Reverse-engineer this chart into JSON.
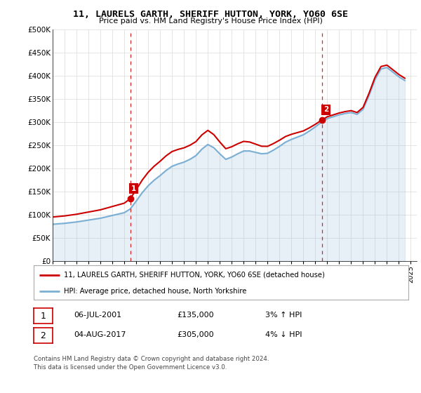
{
  "title": "11, LAURELS GARTH, SHERIFF HUTTON, YORK, YO60 6SE",
  "subtitle": "Price paid vs. HM Land Registry's House Price Index (HPI)",
  "legend_line1": "11, LAURELS GARTH, SHERIFF HUTTON, YORK, YO60 6SE (detached house)",
  "legend_line2": "HPI: Average price, detached house, North Yorkshire",
  "footer": "Contains HM Land Registry data © Crown copyright and database right 2024.\nThis data is licensed under the Open Government Licence v3.0.",
  "sale1_date": "06-JUL-2001",
  "sale1_price": "£135,000",
  "sale1_hpi": "3% ↑ HPI",
  "sale2_date": "04-AUG-2017",
  "sale2_price": "£305,000",
  "sale2_hpi": "4% ↓ HPI",
  "sale_color": "#cc0000",
  "hpi_color": "#7bafd4",
  "background_color": "#ffffff",
  "grid_color": "#e0e0e0",
  "ylim": [
    0,
    500000
  ],
  "yticks": [
    0,
    50000,
    100000,
    150000,
    200000,
    250000,
    300000,
    350000,
    400000,
    450000,
    500000
  ],
  "ytick_labels": [
    "£0",
    "£50K",
    "£100K",
    "£150K",
    "£200K",
    "£250K",
    "£300K",
    "£350K",
    "£400K",
    "£450K",
    "£500K"
  ],
  "hpi_data": {
    "years": [
      1995,
      1995.5,
      1996,
      1996.5,
      1997,
      1997.5,
      1998,
      1998.5,
      1999,
      1999.5,
      2000,
      2000.5,
      2001,
      2001.5,
      2002,
      2002.5,
      2003,
      2003.5,
      2004,
      2004.5,
      2005,
      2005.5,
      2006,
      2006.5,
      2007,
      2007.5,
      2008,
      2008.5,
      2009,
      2009.5,
      2010,
      2010.5,
      2011,
      2011.5,
      2012,
      2012.5,
      2013,
      2013.5,
      2014,
      2014.5,
      2015,
      2015.5,
      2016,
      2016.5,
      2017,
      2017.5,
      2018,
      2018.5,
      2019,
      2019.5,
      2020,
      2020.5,
      2021,
      2021.5,
      2022,
      2022.5,
      2023,
      2023.5,
      2024,
      2024.5
    ],
    "values": [
      80000,
      81000,
      82000,
      83500,
      85000,
      87000,
      89000,
      91000,
      93000,
      96000,
      99000,
      102000,
      105000,
      113000,
      130000,
      148000,
      163000,
      175000,
      185000,
      196000,
      205000,
      210000,
      214000,
      220000,
      228000,
      242000,
      252000,
      245000,
      232000,
      220000,
      225000,
      232000,
      238000,
      238000,
      235000,
      232000,
      233000,
      240000,
      248000,
      257000,
      263000,
      268000,
      273000,
      281000,
      290000,
      300000,
      308000,
      312000,
      316000,
      319000,
      321000,
      317000,
      328000,
      358000,
      392000,
      415000,
      418000,
      408000,
      398000,
      390000
    ]
  },
  "sale_points_x": [
    2001.5,
    2017.58
  ],
  "sale_points_y": [
    135000,
    305000
  ],
  "sale_labels": [
    "1",
    "2"
  ],
  "vline_x": [
    2001.5,
    2017.58
  ],
  "xmin": 1995,
  "xmax": 2025.5
}
